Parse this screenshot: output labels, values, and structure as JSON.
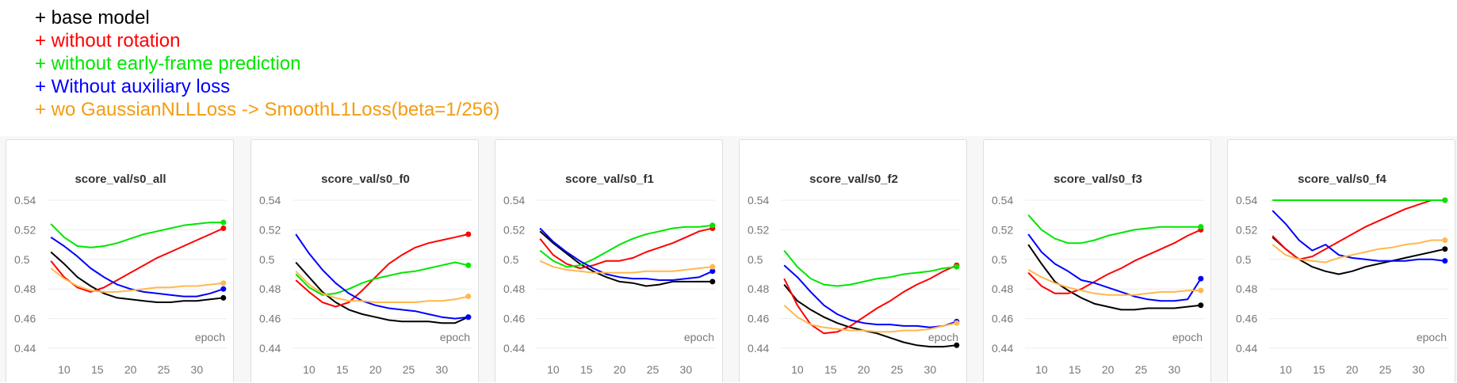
{
  "legend": [
    {
      "text": "+ base model",
      "color": "#000000"
    },
    {
      "text": "+ without  rotation",
      "color": "#ff0000"
    },
    {
      "text": "+ without early-frame prediction",
      "color": "#00e600"
    },
    {
      "text": "+ Without auxiliary loss",
      "color": "#0000ff"
    },
    {
      "text": "+ wo GaussianNLLLoss -> SmoothL1Loss(beta=1/256)",
      "color": "#f39c12"
    }
  ],
  "colors": {
    "base": "#000000",
    "rotation": "#ff0000",
    "early": "#00e600",
    "aux": "#0000ff",
    "gauss": "#ffb84d"
  },
  "chart_data": [
    {
      "type": "line",
      "title": "score_val/s0_all",
      "xlabel": "epoch",
      "xlim": [
        7.5,
        34.5
      ],
      "ylim": [
        0.44,
        0.54
      ],
      "xticks": [
        "10",
        "15",
        "20",
        "25",
        "30"
      ],
      "yticks": [
        "0.44",
        "0.46",
        "0.48",
        "0.5",
        "0.52",
        "0.54"
      ],
      "x": [
        8,
        10,
        12,
        14,
        16,
        18,
        20,
        22,
        24,
        26,
        28,
        30,
        32,
        34
      ],
      "series": [
        {
          "key": "base",
          "values": [
            0.505,
            0.497,
            0.488,
            0.482,
            0.477,
            0.474,
            0.473,
            0.472,
            0.471,
            0.471,
            0.472,
            0.472,
            0.473,
            0.474
          ]
        },
        {
          "key": "rotation",
          "values": [
            0.499,
            0.488,
            0.481,
            0.478,
            0.481,
            0.486,
            0.491,
            0.496,
            0.501,
            0.505,
            0.509,
            0.513,
            0.517,
            0.521
          ]
        },
        {
          "key": "early",
          "values": [
            0.524,
            0.515,
            0.509,
            0.508,
            0.509,
            0.511,
            0.514,
            0.517,
            0.519,
            0.521,
            0.523,
            0.524,
            0.525,
            0.525
          ]
        },
        {
          "key": "aux",
          "values": [
            0.515,
            0.509,
            0.502,
            0.494,
            0.488,
            0.483,
            0.48,
            0.478,
            0.477,
            0.476,
            0.475,
            0.475,
            0.477,
            0.48
          ]
        },
        {
          "key": "gauss",
          "values": [
            0.494,
            0.487,
            0.482,
            0.479,
            0.478,
            0.478,
            0.479,
            0.48,
            0.481,
            0.481,
            0.482,
            0.482,
            0.483,
            0.484
          ]
        }
      ]
    },
    {
      "type": "line",
      "title": "score_val/s0_f0",
      "xlabel": "epoch",
      "xlim": [
        7.5,
        34.5
      ],
      "ylim": [
        0.44,
        0.54
      ],
      "xticks": [
        "10",
        "15",
        "20",
        "25",
        "30"
      ],
      "yticks": [
        "0.44",
        "0.46",
        "0.48",
        "0.5",
        "0.52",
        "0.54"
      ],
      "x": [
        8,
        10,
        12,
        14,
        16,
        18,
        20,
        22,
        24,
        26,
        28,
        30,
        32,
        34
      ],
      "series": [
        {
          "key": "base",
          "values": [
            0.498,
            0.488,
            0.478,
            0.471,
            0.466,
            0.463,
            0.461,
            0.459,
            0.458,
            0.458,
            0.458,
            0.457,
            0.457,
            0.461
          ]
        },
        {
          "key": "rotation",
          "values": [
            0.486,
            0.478,
            0.471,
            0.468,
            0.471,
            0.479,
            0.488,
            0.497,
            0.503,
            0.508,
            0.511,
            0.513,
            0.515,
            0.517
          ]
        },
        {
          "key": "early",
          "values": [
            0.49,
            0.481,
            0.476,
            0.477,
            0.48,
            0.484,
            0.487,
            0.489,
            0.491,
            0.492,
            0.494,
            0.496,
            0.498,
            0.496
          ]
        },
        {
          "key": "aux",
          "values": [
            0.517,
            0.504,
            0.493,
            0.484,
            0.477,
            0.472,
            0.469,
            0.467,
            0.466,
            0.465,
            0.463,
            0.461,
            0.46,
            0.461
          ]
        },
        {
          "key": "gauss",
          "values": [
            0.492,
            0.483,
            0.477,
            0.474,
            0.472,
            0.472,
            0.471,
            0.471,
            0.471,
            0.471,
            0.472,
            0.472,
            0.473,
            0.475
          ]
        }
      ]
    },
    {
      "type": "line",
      "title": "score_val/s0_f1",
      "xlabel": "epoch",
      "xlim": [
        7.5,
        34.5
      ],
      "ylim": [
        0.44,
        0.54
      ],
      "xticks": [
        "10",
        "15",
        "20",
        "25",
        "30"
      ],
      "yticks": [
        "0.44",
        "0.46",
        "0.48",
        "0.5",
        "0.52",
        "0.54"
      ],
      "x": [
        8,
        10,
        12,
        14,
        16,
        18,
        20,
        22,
        24,
        26,
        28,
        30,
        32,
        34
      ],
      "series": [
        {
          "key": "base",
          "values": [
            0.519,
            0.511,
            0.504,
            0.497,
            0.492,
            0.488,
            0.485,
            0.484,
            0.482,
            0.483,
            0.485,
            0.485,
            0.485,
            0.485
          ]
        },
        {
          "key": "rotation",
          "values": [
            0.514,
            0.503,
            0.497,
            0.494,
            0.496,
            0.499,
            0.499,
            0.501,
            0.505,
            0.508,
            0.511,
            0.515,
            0.519,
            0.521
          ]
        },
        {
          "key": "early",
          "values": [
            0.506,
            0.499,
            0.495,
            0.496,
            0.5,
            0.505,
            0.51,
            0.514,
            0.517,
            0.519,
            0.521,
            0.522,
            0.522,
            0.523
          ]
        },
        {
          "key": "aux",
          "values": [
            0.521,
            0.512,
            0.505,
            0.499,
            0.494,
            0.49,
            0.488,
            0.487,
            0.487,
            0.486,
            0.486,
            0.487,
            0.488,
            0.492
          ]
        },
        {
          "key": "gauss",
          "values": [
            0.499,
            0.495,
            0.493,
            0.492,
            0.491,
            0.491,
            0.491,
            0.491,
            0.492,
            0.492,
            0.492,
            0.493,
            0.494,
            0.495
          ]
        }
      ]
    },
    {
      "type": "line",
      "title": "score_val/s0_f2",
      "xlabel": "epoch",
      "xlim": [
        7.5,
        34.5
      ],
      "ylim": [
        0.44,
        0.54
      ],
      "xticks": [
        "10",
        "15",
        "20",
        "25",
        "30"
      ],
      "yticks": [
        "0.44",
        "0.46",
        "0.48",
        "0.5",
        "0.52",
        "0.54"
      ],
      "x": [
        8,
        10,
        12,
        14,
        16,
        18,
        20,
        22,
        24,
        26,
        28,
        30,
        32,
        34
      ],
      "series": [
        {
          "key": "base",
          "values": [
            0.483,
            0.472,
            0.466,
            0.461,
            0.457,
            0.454,
            0.452,
            0.45,
            0.447,
            0.444,
            0.442,
            0.441,
            0.441,
            0.442
          ]
        },
        {
          "key": "rotation",
          "values": [
            0.487,
            0.469,
            0.456,
            0.45,
            0.451,
            0.455,
            0.461,
            0.467,
            0.472,
            0.478,
            0.483,
            0.487,
            0.492,
            0.496
          ]
        },
        {
          "key": "early",
          "values": [
            0.506,
            0.495,
            0.487,
            0.483,
            0.482,
            0.483,
            0.485,
            0.487,
            0.488,
            0.49,
            0.491,
            0.492,
            0.494,
            0.495
          ]
        },
        {
          "key": "aux",
          "values": [
            0.496,
            0.488,
            0.478,
            0.469,
            0.463,
            0.459,
            0.457,
            0.456,
            0.456,
            0.455,
            0.455,
            0.454,
            0.455,
            0.458
          ]
        },
        {
          "key": "gauss",
          "values": [
            0.469,
            0.461,
            0.456,
            0.454,
            0.453,
            0.452,
            0.452,
            0.451,
            0.451,
            0.452,
            0.452,
            0.453,
            0.455,
            0.457
          ]
        }
      ]
    },
    {
      "type": "line",
      "title": "score_val/s0_f3",
      "xlabel": "epoch",
      "xlim": [
        7.5,
        34.5
      ],
      "ylim": [
        0.44,
        0.54
      ],
      "xticks": [
        "10",
        "15",
        "20",
        "25",
        "30"
      ],
      "yticks": [
        "0.44",
        "0.46",
        "0.48",
        "0.5",
        "0.52",
        "0.54"
      ],
      "x": [
        8,
        10,
        12,
        14,
        16,
        18,
        20,
        22,
        24,
        26,
        28,
        30,
        32,
        34
      ],
      "series": [
        {
          "key": "base",
          "values": [
            0.51,
            0.497,
            0.485,
            0.479,
            0.474,
            0.47,
            0.468,
            0.466,
            0.466,
            0.467,
            0.467,
            0.467,
            0.468,
            0.469
          ]
        },
        {
          "key": "rotation",
          "values": [
            0.491,
            0.482,
            0.477,
            0.477,
            0.48,
            0.485,
            0.49,
            0.494,
            0.499,
            0.503,
            0.507,
            0.511,
            0.516,
            0.52
          ]
        },
        {
          "key": "early",
          "values": [
            0.53,
            0.52,
            0.514,
            0.511,
            0.511,
            0.513,
            0.516,
            0.518,
            0.52,
            0.521,
            0.522,
            0.522,
            0.522,
            0.522
          ]
        },
        {
          "key": "aux",
          "values": [
            0.517,
            0.505,
            0.497,
            0.492,
            0.486,
            0.484,
            0.481,
            0.478,
            0.475,
            0.473,
            0.472,
            0.472,
            0.473,
            0.487
          ]
        },
        {
          "key": "gauss",
          "values": [
            0.493,
            0.488,
            0.484,
            0.481,
            0.479,
            0.477,
            0.476,
            0.476,
            0.476,
            0.477,
            0.478,
            0.478,
            0.479,
            0.479
          ]
        }
      ]
    },
    {
      "type": "line",
      "title": "score_val/s0_f4",
      "xlabel": "epoch",
      "xlim": [
        7.5,
        34.5
      ],
      "ylim": [
        0.44,
        0.54
      ],
      "xticks": [
        "10",
        "15",
        "20",
        "25",
        "30"
      ],
      "yticks": [
        "0.44",
        "0.46",
        "0.48",
        "0.5",
        "0.52",
        "0.54"
      ],
      "x": [
        8,
        10,
        12,
        14,
        16,
        18,
        20,
        22,
        24,
        26,
        28,
        30,
        32,
        34
      ],
      "series": [
        {
          "key": "base",
          "values": [
            0.515,
            0.507,
            0.5,
            0.495,
            0.492,
            0.49,
            0.492,
            0.495,
            0.497,
            0.499,
            0.501,
            0.503,
            0.505,
            0.507
          ]
        },
        {
          "key": "rotation",
          "values": [
            0.516,
            0.507,
            0.5,
            0.502,
            0.507,
            0.512,
            0.517,
            0.522,
            0.526,
            0.53,
            0.534,
            0.537,
            0.54,
            0.54
          ]
        },
        {
          "key": "early",
          "values": [
            0.54,
            0.54,
            0.54,
            0.54,
            0.54,
            0.54,
            0.54,
            0.54,
            0.54,
            0.54,
            0.54,
            0.54,
            0.54,
            0.54
          ]
        },
        {
          "key": "aux",
          "values": [
            0.533,
            0.524,
            0.513,
            0.506,
            0.51,
            0.503,
            0.501,
            0.5,
            0.499,
            0.499,
            0.499,
            0.5,
            0.5,
            0.499
          ]
        },
        {
          "key": "gauss",
          "values": [
            0.51,
            0.503,
            0.5,
            0.499,
            0.498,
            0.501,
            0.503,
            0.505,
            0.507,
            0.508,
            0.51,
            0.511,
            0.513,
            0.513
          ]
        }
      ]
    }
  ]
}
